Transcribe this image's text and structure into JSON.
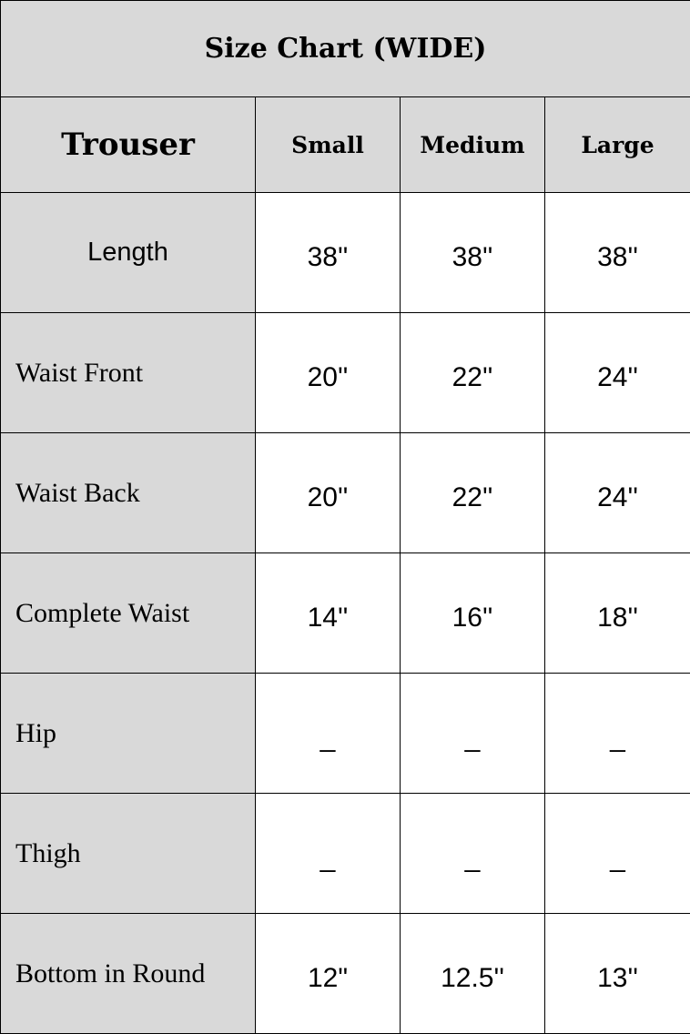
{
  "title": "Size Chart (WIDE)",
  "header": {
    "first": "Trouser",
    "sizes": [
      "Small",
      "Medium",
      "Large"
    ]
  },
  "rows": [
    {
      "label": "Length",
      "values": [
        "38''",
        "38''",
        "38''"
      ]
    },
    {
      "label": "Waist Front",
      "values": [
        "20''",
        "22''",
        "24''"
      ]
    },
    {
      "label": "Waist Back",
      "values": [
        "20''",
        "22''",
        "24''"
      ]
    },
    {
      "label": "Complete Waist",
      "values": [
        "14''",
        "16''",
        "18''"
      ]
    },
    {
      "label": "Hip",
      "values": [
        "_",
        "_",
        "_"
      ]
    },
    {
      "label": "Thigh",
      "values": [
        "_",
        "_",
        "_"
      ]
    },
    {
      "label": "Bottom in Round",
      "values": [
        "12\"",
        "12.5''",
        "13''"
      ]
    }
  ],
  "colors": {
    "header_bg": "#d9d9d9",
    "cell_bg": "#ffffff",
    "border": "#000000"
  }
}
